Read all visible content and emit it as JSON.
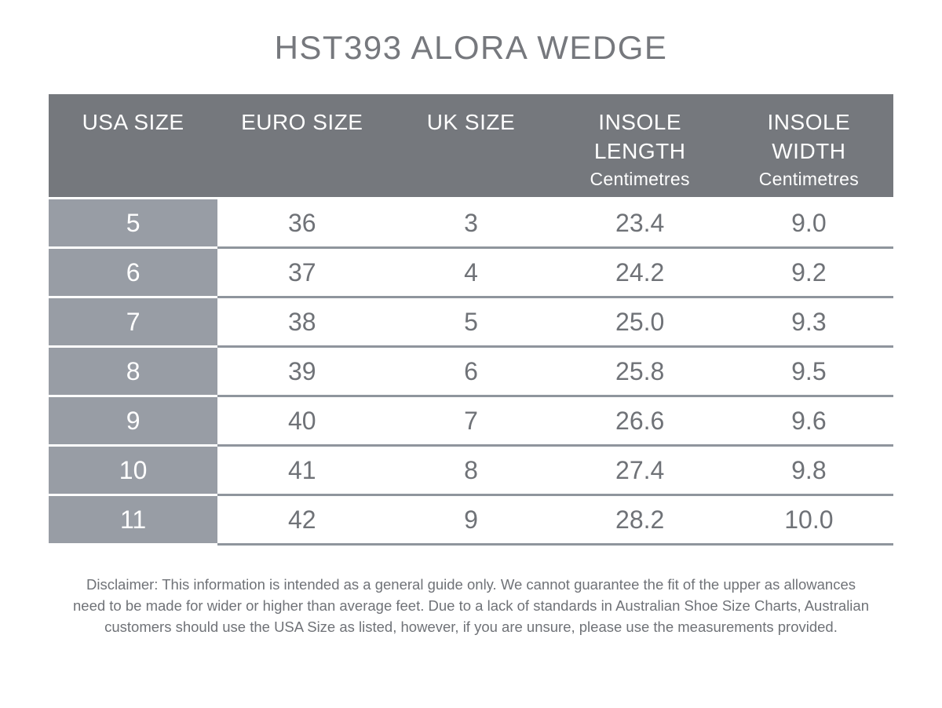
{
  "title": "HST393 ALORA WEDGE",
  "colors": {
    "header_bg": "#75787D",
    "row_header_bg": "#989DA5",
    "row_separator": "#8F959D",
    "text_gray": "#6F7277",
    "header_text": "#FFFFFF"
  },
  "table": {
    "columns": [
      {
        "label": "USA SIZE",
        "sublabel": ""
      },
      {
        "label": "EURO SIZE",
        "sublabel": ""
      },
      {
        "label": "UK SIZE",
        "sublabel": ""
      },
      {
        "label": "INSOLE LENGTH",
        "sublabel": "Centimetres"
      },
      {
        "label": "INSOLE WIDTH",
        "sublabel": "Centimetres"
      }
    ],
    "rows": [
      [
        "5",
        "36",
        "3",
        "23.4",
        "9.0"
      ],
      [
        "6",
        "37",
        "4",
        "24.2",
        "9.2"
      ],
      [
        "7",
        "38",
        "5",
        "25.0",
        "9.3"
      ],
      [
        "8",
        "39",
        "6",
        "25.8",
        "9.5"
      ],
      [
        "9",
        "40",
        "7",
        "26.6",
        "9.6"
      ],
      [
        "10",
        "41",
        "8",
        "27.4",
        "9.8"
      ],
      [
        "11",
        "42",
        "9",
        "28.2",
        "10.0"
      ]
    ]
  },
  "disclaimer": {
    "lines": [
      "Disclaimer: This information is intended as a general guide only. We cannot guarantee the fit of the upper as allowances",
      "need to be made for wider or higher than average feet. Due to a lack of standards in Australian Shoe Size Charts, Australian",
      "customers should use the USA Size as listed, however, if you are unsure, please use the measurements provided."
    ]
  },
  "chart_data": {
    "type": "table",
    "title": "HST393 ALORA WEDGE",
    "columns": [
      "USA SIZE",
      "EURO SIZE",
      "UK SIZE",
      "INSOLE LENGTH (Centimetres)",
      "INSOLE WIDTH (Centimetres)"
    ],
    "rows": [
      [
        5,
        36,
        3,
        23.4,
        9.0
      ],
      [
        6,
        37,
        4,
        24.2,
        9.2
      ],
      [
        7,
        38,
        5,
        25.0,
        9.3
      ],
      [
        8,
        39,
        6,
        25.8,
        9.5
      ],
      [
        9,
        40,
        7,
        26.6,
        9.6
      ],
      [
        10,
        41,
        8,
        27.4,
        9.8
      ],
      [
        11,
        42,
        9,
        28.2,
        10.0
      ]
    ]
  }
}
